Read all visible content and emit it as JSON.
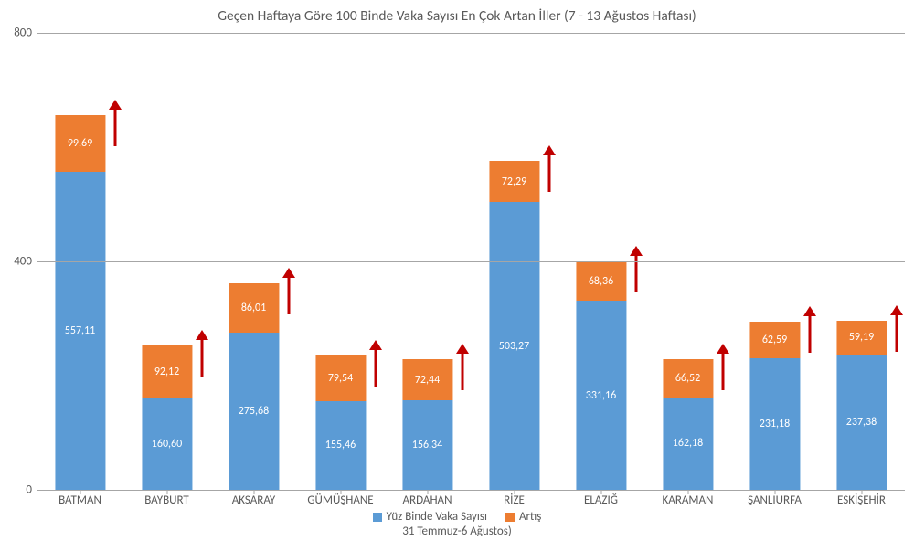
{
  "chart": {
    "type": "stacked-bar",
    "title": "Geçen Haftaya Göre 100 Binde Vaka Sayısı En Çok Artan İller (7 - 13 Ağustos Haftası)",
    "title_fontsize": 15.5,
    "title_color": "#595959",
    "background_color": "#ffffff",
    "grid_color": "#a6a6a6",
    "label_fontsize": 13,
    "label_color": "#595959",
    "value_fontsize": 12,
    "value_color": "#ffffff",
    "ylim": [
      0,
      800
    ],
    "ytick_step": 400,
    "bar_width_ratio": 0.58,
    "arrow_color": "#c00000",
    "arrow_len_ratio": 0.082,
    "categories": [
      "BATMAN",
      "BAYBURT",
      "AKSARAY",
      "GÜMÜŞHANE",
      "ARDAHAN",
      "RİZE",
      "ELAZIĞ",
      "KARAMAN",
      "ŞANLIURFA",
      "ESKİŞEHİR"
    ],
    "series": [
      {
        "name": "Yüz Binde Vaka Sayısı",
        "color": "#5b9bd5",
        "values": [
          557.11,
          160.6,
          275.68,
          155.46,
          156.34,
          503.27,
          331.16,
          162.18,
          231.18,
          237.38
        ],
        "labels": [
          "557,11",
          "160,60",
          "275,68",
          "155,46",
          "156,34",
          "503,27",
          "331,16",
          "162,18",
          "231,18",
          "237,38"
        ]
      },
      {
        "name": "Artış",
        "color": "#ed7d31",
        "values": [
          99.69,
          92.12,
          86.01,
          79.54,
          72.44,
          72.29,
          68.36,
          66.52,
          62.59,
          59.19
        ],
        "labels": [
          "99,69",
          "92,12",
          "86,01",
          "79,54",
          "72,44",
          "72,29",
          "68,36",
          "66,52",
          "62,59",
          "59,19"
        ]
      }
    ],
    "legend_items": [
      {
        "swatch": "#5b9bd5",
        "label": "Yüz Binde Vaka Sayısı"
      },
      {
        "swatch": "#ed7d31",
        "label": "Artış"
      }
    ],
    "sublegend": "31 Temmuz-6 Ağustos)"
  }
}
